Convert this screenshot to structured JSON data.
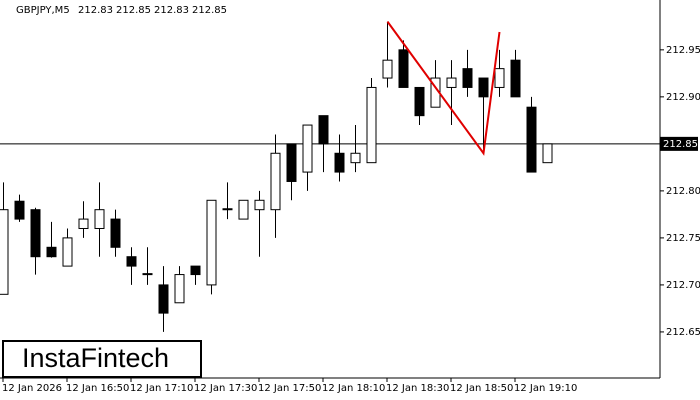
{
  "chart_data": {
    "type": "candlestick",
    "title": "GBPJPY,M5",
    "ohlc": [
      212.83,
      212.85,
      212.83,
      212.85
    ],
    "watermark": "InstaFintech",
    "categories": [
      "12 Jan 2026",
      null,
      null,
      null,
      "12 Jan 16:50",
      null,
      null,
      null,
      "12 Jan 17:10",
      null,
      null,
      null,
      "12 Jan 17:30",
      null,
      null,
      null,
      "12 Jan 17:50",
      null,
      null,
      null,
      "12 Jan 18:10",
      null,
      null,
      null,
      "12 Jan 18:30",
      null,
      null,
      null,
      "12 Jan 18:50",
      null,
      null,
      null,
      "12 Jan 19:10",
      null,
      null
    ],
    "open": [
      212.69,
      212.789,
      212.78,
      212.74,
      212.72,
      212.76,
      212.76,
      212.77,
      212.73,
      212.712,
      212.7,
      212.681,
      212.72,
      212.7,
      212.78,
      212.77,
      212.78,
      212.78,
      212.85,
      212.82,
      212.88,
      212.84,
      212.83,
      212.83,
      212.92,
      212.95,
      212.91,
      212.889,
      212.91,
      212.93,
      212.92,
      212.91,
      212.939,
      212.889,
      212.83
    ],
    "high": [
      212.809,
      212.796,
      212.782,
      212.767,
      212.76,
      212.789,
      212.809,
      212.78,
      212.74,
      212.74,
      212.72,
      212.72,
      212.72,
      212.79,
      212.809,
      212.79,
      212.8,
      212.86,
      212.85,
      212.87,
      212.88,
      212.86,
      212.87,
      212.92,
      212.98,
      212.96,
      212.91,
      212.939,
      212.939,
      212.95,
      212.92,
      212.95,
      212.95,
      212.9,
      212.85
    ],
    "low": [
      212.69,
      212.767,
      212.711,
      212.729,
      212.72,
      212.75,
      212.73,
      212.73,
      212.7,
      212.7,
      212.65,
      212.681,
      212.7,
      212.69,
      212.77,
      212.77,
      212.73,
      212.75,
      212.79,
      212.8,
      212.82,
      212.81,
      212.82,
      212.83,
      212.91,
      212.91,
      212.87,
      212.889,
      212.87,
      212.9,
      212.84,
      212.9,
      212.9,
      212.82,
      212.83
    ],
    "close": [
      212.78,
      212.77,
      212.73,
      212.73,
      212.75,
      212.77,
      212.78,
      212.74,
      212.72,
      212.711,
      212.67,
      212.711,
      212.711,
      212.79,
      212.781,
      212.79,
      212.79,
      212.84,
      212.81,
      212.87,
      212.85,
      212.82,
      212.84,
      212.91,
      212.939,
      212.91,
      212.88,
      212.92,
      212.92,
      212.91,
      212.9,
      212.93,
      212.9,
      212.82,
      212.85
    ],
    "up_color": "#ffffff",
    "down_color": "#000000",
    "ylim": [
      212.601,
      213.003
    ],
    "yticks": [
      212.65,
      {
        "value": 212.7,
        "label": "212.70"
      },
      212.75,
      {
        "value": 212.8,
        "label": "212.80"
      },
      {
        "value": 212.9,
        "label": "212.90"
      },
      212.95
    ],
    "price_line": 212.85,
    "pattern": {
      "color": "#e00000",
      "x": [
        24,
        30,
        31
      ],
      "y": [
        212.98,
        212.84,
        212.969
      ]
    }
  }
}
